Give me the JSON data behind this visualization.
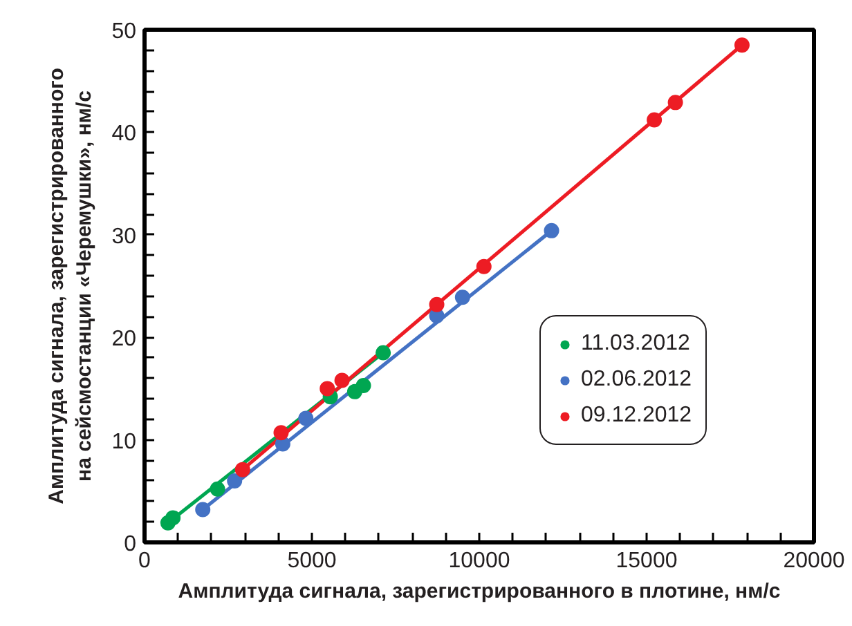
{
  "chart_data": {
    "type": "scatter",
    "xlabel": "Амплитуда сигнала, зарегистрированного в плотине, нм/с",
    "ylabel": "Амплитуда сигнала, зарегистрированного на сейсмостанции «Черемушки», нм/с",
    "xlim": [
      0,
      20000
    ],
    "ylim": [
      0,
      50
    ],
    "xticks": [
      0,
      {
        "value": 1000,
        "label": null
      },
      {
        "value": 2000,
        "label": null
      },
      {
        "value": 3000,
        "label": null
      },
      {
        "value": 4000,
        "label": null
      },
      5000,
      {
        "value": 6000,
        "label": null
      },
      {
        "value": 7000,
        "label": null
      },
      {
        "value": 8000,
        "label": null
      },
      {
        "value": 9000,
        "label": null
      },
      10000,
      {
        "value": 11000,
        "label": null
      },
      {
        "value": 12000,
        "label": null
      },
      {
        "value": 13000,
        "label": null
      },
      {
        "value": 14000,
        "label": null
      },
      15000,
      {
        "value": 16000,
        "label": null
      },
      {
        "value": 17000,
        "label": null
      },
      {
        "value": 18000,
        "label": null
      },
      {
        "value": 19000,
        "label": null
      },
      20000
    ],
    "yticks": [
      0,
      {
        "value": 2,
        "label": null
      },
      {
        "value": 4,
        "label": null
      },
      {
        "value": 6,
        "label": null
      },
      {
        "value": 8,
        "label": null
      },
      10,
      {
        "value": 12,
        "label": null
      },
      {
        "value": 14,
        "label": null
      },
      {
        "value": 16,
        "label": null
      },
      {
        "value": 18,
        "label": null
      },
      20,
      {
        "value": 22,
        "label": null
      },
      {
        "value": 24,
        "label": null
      },
      {
        "value": 26,
        "label": null
      },
      {
        "value": 28,
        "label": null
      },
      30,
      {
        "value": 32,
        "label": null
      },
      {
        "value": 34,
        "label": null
      },
      {
        "value": 36,
        "label": null
      },
      {
        "value": 38,
        "label": null
      },
      40,
      {
        "value": 42,
        "label": null
      },
      {
        "value": 44,
        "label": null
      },
      {
        "value": 46,
        "label": null
      },
      {
        "value": 48,
        "label": null
      },
      50
    ],
    "grid": false,
    "legend": "right",
    "marker": "circle",
    "line_style": "solid",
    "series": [
      {
        "type": "line",
        "marker": "none",
        "color": "#00a651",
        "x": [
          700,
          7130
        ],
        "values": [
          1.9,
          18.5
        ]
      },
      {
        "type": "line",
        "marker": "none",
        "color": "#4472c4",
        "x": [
          1740,
          12160
        ],
        "values": [
          3.2,
          30.4
        ]
      },
      {
        "type": "line",
        "marker": "none",
        "color": "#ed1c24",
        "x": [
          2930,
          17850
        ],
        "values": [
          7.1,
          48.5
        ]
      },
      {
        "name": "11.03.2012",
        "color": "#00a651",
        "x": [
          700,
          850,
          2180,
          5550,
          6280,
          6540,
          7130
        ],
        "values": [
          1.9,
          2.4,
          5.2,
          14.2,
          14.7,
          15.3,
          18.5
        ]
      },
      {
        "name": "02.06.2012",
        "color": "#4472c4",
        "x": [
          1740,
          2690,
          4130,
          4820,
          8730,
          9500,
          12160
        ],
        "values": [
          3.2,
          6.0,
          9.6,
          12.1,
          22.1,
          23.9,
          30.4
        ]
      },
      {
        "name": "09.12.2012",
        "color": "#ed1c24",
        "x": [
          2930,
          4080,
          5460,
          5900,
          8730,
          10140,
          15230,
          15860,
          17850
        ],
        "values": [
          7.1,
          10.7,
          15.0,
          15.8,
          23.2,
          26.9,
          41.2,
          42.9,
          48.5
        ]
      }
    ]
  }
}
